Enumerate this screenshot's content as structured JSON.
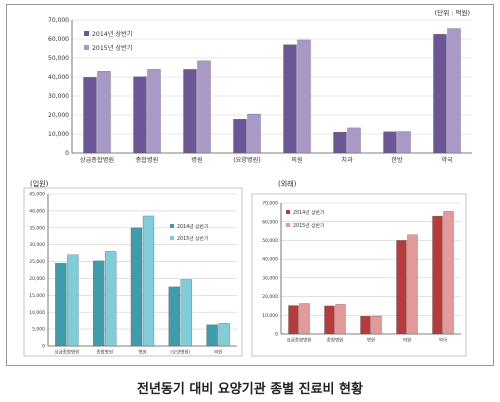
{
  "caption": "전년동기 대비 요양기관 종별 진료비 현황",
  "colors": {
    "top_2014": "#6b5796",
    "top_2015": "#a899c6",
    "left_2014": "#3e9cac",
    "left_2015": "#7fcdd9",
    "right_2014": "#b83b3b",
    "right_2015": "#e29a9a"
  },
  "chart_data": [
    {
      "type": "bar",
      "unit_note": "(단위 : 억원)",
      "categories": [
        "상급종합병원",
        "종합병원",
        "병원",
        "(요양병원)",
        "의원",
        "치과",
        "한방",
        "약국"
      ],
      "series": [
        {
          "name": "2014년 상반기",
          "values": [
            39800,
            40100,
            44000,
            17800,
            57000,
            11000,
            11200,
            62500
          ]
        },
        {
          "name": "2015년 상반기",
          "values": [
            43000,
            44000,
            48500,
            20500,
            59500,
            13200,
            11300,
            65500
          ]
        }
      ],
      "ylim": [
        0,
        70000
      ],
      "yticks": [
        "0",
        "10,000",
        "20,000",
        "30,000",
        "40,000",
        "50,000",
        "60,000",
        "70,000"
      ],
      "legend": "top-left"
    },
    {
      "type": "bar",
      "title": "(입원)",
      "categories": [
        "상급종합병원",
        "종합병원",
        "병원",
        "(요양병원)",
        "의원"
      ],
      "series": [
        {
          "name": "2014년 상반기",
          "values": [
            24500,
            25200,
            35000,
            17500,
            6300
          ]
        },
        {
          "name": "2015년 상반기",
          "values": [
            27000,
            28000,
            38500,
            19700,
            6700
          ]
        }
      ],
      "ylim": [
        0,
        45000
      ],
      "yticks": [
        "0",
        "5,000",
        "10,000",
        "15,000",
        "20,000",
        "25,000",
        "30,000",
        "35,000",
        "40,000",
        "45,000"
      ],
      "legend": "top-right"
    },
    {
      "type": "bar",
      "title": "(외래)",
      "categories": [
        "상급종합병원",
        "종합병원",
        "병원",
        "의원",
        "약국"
      ],
      "series": [
        {
          "name": "2014년 상반기",
          "values": [
            15200,
            15000,
            9500,
            50000,
            63000
          ]
        },
        {
          "name": "2015년 상반기",
          "values": [
            16300,
            15800,
            9600,
            53000,
            65500
          ]
        }
      ],
      "ylim": [
        0,
        70000
      ],
      "yticks": [
        "0",
        "10,000",
        "20,000",
        "30,000",
        "40,000",
        "50,000",
        "60,000",
        "70,000"
      ],
      "legend": "top-left"
    }
  ]
}
